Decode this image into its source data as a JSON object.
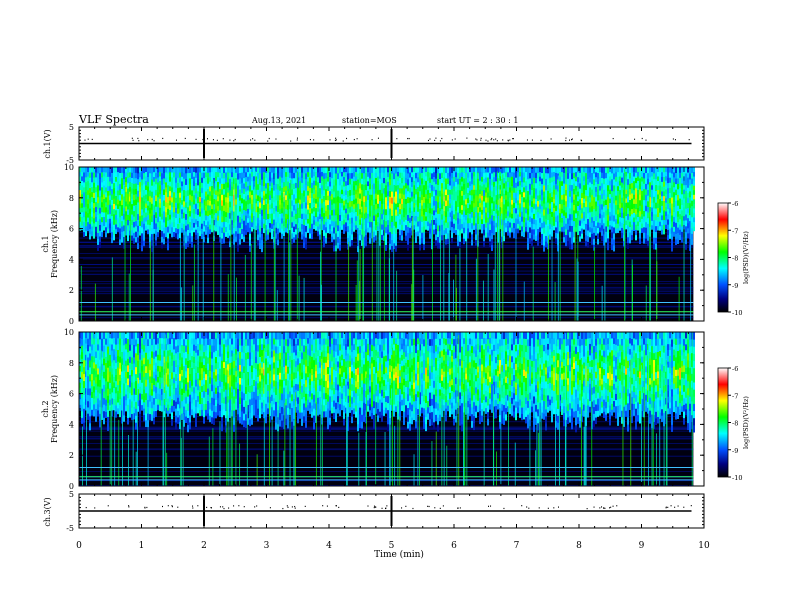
{
  "header": {
    "title": "VLF Spectra",
    "date": "Aug.13, 2021",
    "station": "station=MOS",
    "start": "start  UT =   2 : 30 : 1"
  },
  "chart_data": [
    {
      "type": "line",
      "panel": "ch.1 voltage",
      "ylabel": "ch.1(V)",
      "xlim": [
        0,
        10
      ],
      "ylim": [
        -5,
        5
      ],
      "yticks": [
        "5",
        "-5"
      ],
      "x": [
        0,
        9.8
      ],
      "values": [
        0,
        0
      ]
    },
    {
      "type": "heatmap",
      "panel": "ch.1 spectrogram",
      "ylabel": "ch.1 Frequency (kHz)",
      "xlim": [
        0,
        10
      ],
      "ylim": [
        0,
        10
      ],
      "yticks": [
        "0",
        "2",
        "4",
        "6",
        "8",
        "10"
      ],
      "data_extent_min": 9.83,
      "emission_band_khz": [
        4.5,
        10
      ],
      "colorbar": {
        "label": "log(PSD)(V²/Hz)",
        "range": [
          -10,
          -6
        ],
        "ticks": [
          "-6",
          "-7",
          "-8",
          "-9",
          "-10"
        ]
      }
    },
    {
      "type": "heatmap",
      "panel": "ch.2 spectrogram",
      "ylabel": "ch.2 Frequency (kHz)",
      "xlim": [
        0,
        10
      ],
      "ylim": [
        0,
        10
      ],
      "yticks": [
        "0",
        "2",
        "4",
        "6",
        "8",
        "10"
      ],
      "data_extent_min": 9.83,
      "emission_band_khz": [
        3.5,
        10
      ],
      "colorbar": {
        "label": "log(PSD)(V²/Hz)",
        "range": [
          -10,
          -6
        ],
        "ticks": [
          "-6",
          "-7",
          "-8",
          "-9",
          "-10"
        ]
      }
    },
    {
      "type": "line",
      "panel": "ch.3 voltage",
      "ylabel": "ch.3(V)",
      "xlim": [
        0,
        10
      ],
      "ylim": [
        -5,
        5
      ],
      "yticks": [
        "5",
        "-5"
      ],
      "x": [
        0,
        9.8
      ],
      "values": [
        0,
        0
      ]
    }
  ],
  "xaxis": {
    "label": "Time (min)",
    "ticks": [
      "0",
      "1",
      "2",
      "3",
      "4",
      "5",
      "6",
      "7",
      "8",
      "9",
      "10"
    ]
  }
}
